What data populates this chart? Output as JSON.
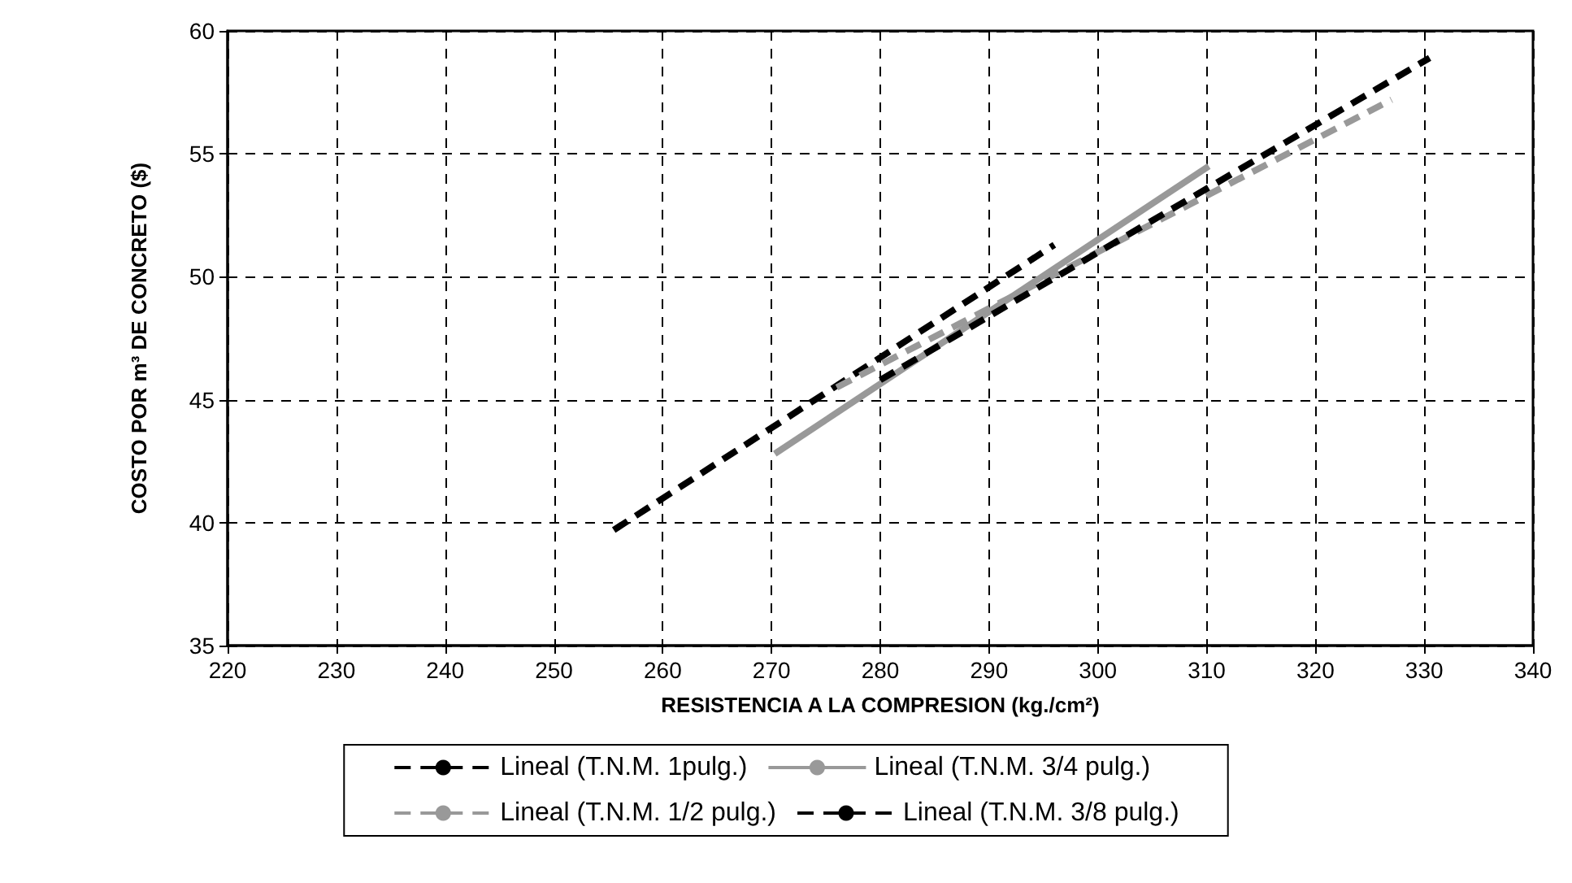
{
  "chart_data": {
    "type": "line",
    "xlabel": "RESISTENCIA A LA COMPRESION (kg./cm²)",
    "ylabel": "COSTO POR m³ DE CONCRETO ($)",
    "xlim": [
      220,
      340
    ],
    "xticks": [
      220,
      230,
      240,
      250,
      260,
      270,
      280,
      290,
      300,
      310,
      320,
      330,
      340
    ],
    "ylim": [
      35,
      60
    ],
    "yticks": [
      35,
      40,
      45,
      50,
      55,
      60
    ],
    "grid": true,
    "legend": "bottom",
    "marker": "none",
    "series": [
      {
        "name": "Lineal (T.N.M. 1pulg.)",
        "color": "#000000",
        "line_style": "dashed",
        "x": [
          255.5,
          296
        ],
        "values": [
          39.7,
          51.3
        ]
      },
      {
        "name": "Lineal (T.N.M. 3/4 pulg.)",
        "color": "#999999",
        "line_style": "solid",
        "x": [
          270.3,
          310.2
        ],
        "values": [
          42.8,
          54.5
        ]
      },
      {
        "name": "Lineal (T.N.M. 1/2 pulg.)",
        "color": "#999999",
        "line_style": "dashed",
        "x": [
          276,
          327
        ],
        "values": [
          45.5,
          57.2
        ]
      },
      {
        "name": "Lineal (T.N.M. 3/8 pulg.)",
        "color": "#000000",
        "line_style": "dashed",
        "x": [
          280,
          330.5
        ],
        "values": [
          45.8,
          58.9
        ]
      }
    ]
  }
}
